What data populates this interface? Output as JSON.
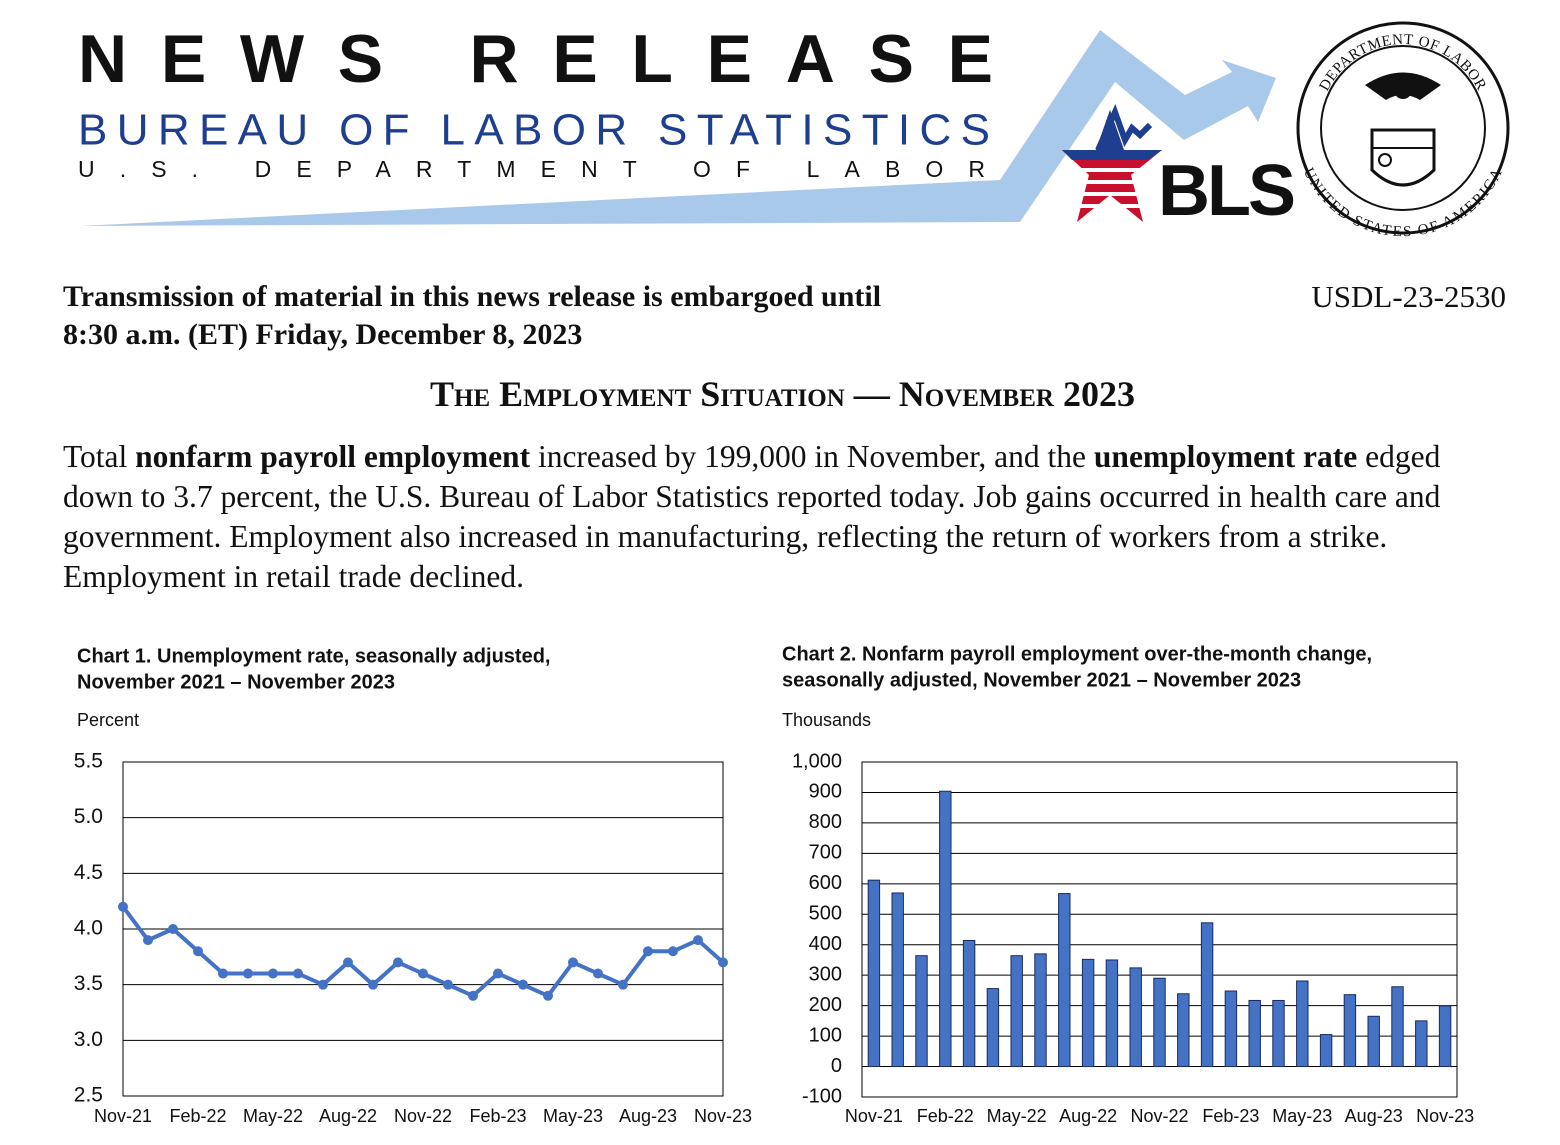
{
  "header": {
    "title": "NEWS RELEASE",
    "agency": "BUREAU OF LABOR STATISTICS",
    "department": "U.S. DEPARTMENT OF LABOR",
    "logo": "BLS",
    "seal_top": "DEPARTMENT OF LABOR",
    "seal_bottom": "UNITED STATES OF AMERICA"
  },
  "embargo": [
    "Transmission of material in this news release is embargoed until",
    "8:30 a.m. (ET) Friday, December 8, 2023"
  ],
  "release_number": "USDL-23-2530",
  "headline": "The Employment Situation — November 2023",
  "summary": [
    {
      "text": "Total ",
      "bold": false
    },
    {
      "text": "nonfarm payroll employment",
      "bold": true
    },
    {
      "text": " increased by 199,000 in November, and the ",
      "bold": false
    },
    {
      "text": "unemployment rate",
      "bold": true
    },
    {
      "text": " edged down to 3.7 percent, the U.S. Bureau of Labor Statistics reported today. Job gains occurred in health care and government. Employment also increased in manufacturing, reflecting the return of workers from a strike. Employment in retail trade declined.",
      "bold": false
    }
  ],
  "chart_data": [
    {
      "type": "line",
      "title": [
        "Chart 1. Unemployment rate, seasonally adjusted,",
        "November 2021 – November 2023"
      ],
      "y_label": "Percent",
      "categories": [
        "Nov-21",
        null,
        null,
        "Feb-22",
        null,
        null,
        "May-22",
        null,
        null,
        "Aug-22",
        null,
        null,
        "Nov-22",
        null,
        null,
        "Feb-23",
        null,
        null,
        "May-23",
        null,
        null,
        "Aug-23",
        null,
        null,
        "Nov-23"
      ],
      "values": [
        4.2,
        3.9,
        4.0,
        3.8,
        3.6,
        3.6,
        3.6,
        3.6,
        3.5,
        3.7,
        3.5,
        3.7,
        3.6,
        3.5,
        3.4,
        3.6,
        3.5,
        3.4,
        3.7,
        3.6,
        3.5,
        3.8,
        3.8,
        3.9,
        3.7
      ],
      "color": "#4472c4",
      "ylim": [
        2.5,
        5.5
      ],
      "yticks": [
        2.5,
        {
          "value": 3,
          "label": "3.0"
        },
        3.5,
        {
          "value": 4,
          "label": "4.0"
        },
        4.5,
        {
          "value": 5,
          "label": "5.0"
        },
        5.5
      ],
      "grid": true
    },
    {
      "type": "bar",
      "title": [
        "Chart 2. Nonfarm payroll employment over-the-month change,",
        "seasonally adjusted, November 2021 – November 2023"
      ],
      "y_label": "Thousands",
      "categories": [
        "Nov-21",
        null,
        null,
        "Feb-22",
        null,
        null,
        "May-22",
        null,
        null,
        "Aug-22",
        null,
        null,
        "Nov-22",
        null,
        null,
        "Feb-23",
        null,
        null,
        "May-23",
        null,
        null,
        "Aug-23",
        null,
        null,
        "Nov-23"
      ],
      "values": [
        612,
        570,
        364,
        904,
        414,
        256,
        364,
        370,
        568,
        352,
        350,
        324,
        290,
        239,
        472,
        248,
        217,
        217,
        281,
        105,
        236,
        165,
        262,
        150,
        199
      ],
      "color": "#4472c4",
      "ylim": [
        -100,
        1000
      ],
      "yticks": [
        -100,
        0,
        100,
        200,
        300,
        400,
        500,
        600,
        700,
        800,
        900,
        {
          "value": 1000,
          "label": "1,000"
        }
      ],
      "grid": true
    }
  ]
}
